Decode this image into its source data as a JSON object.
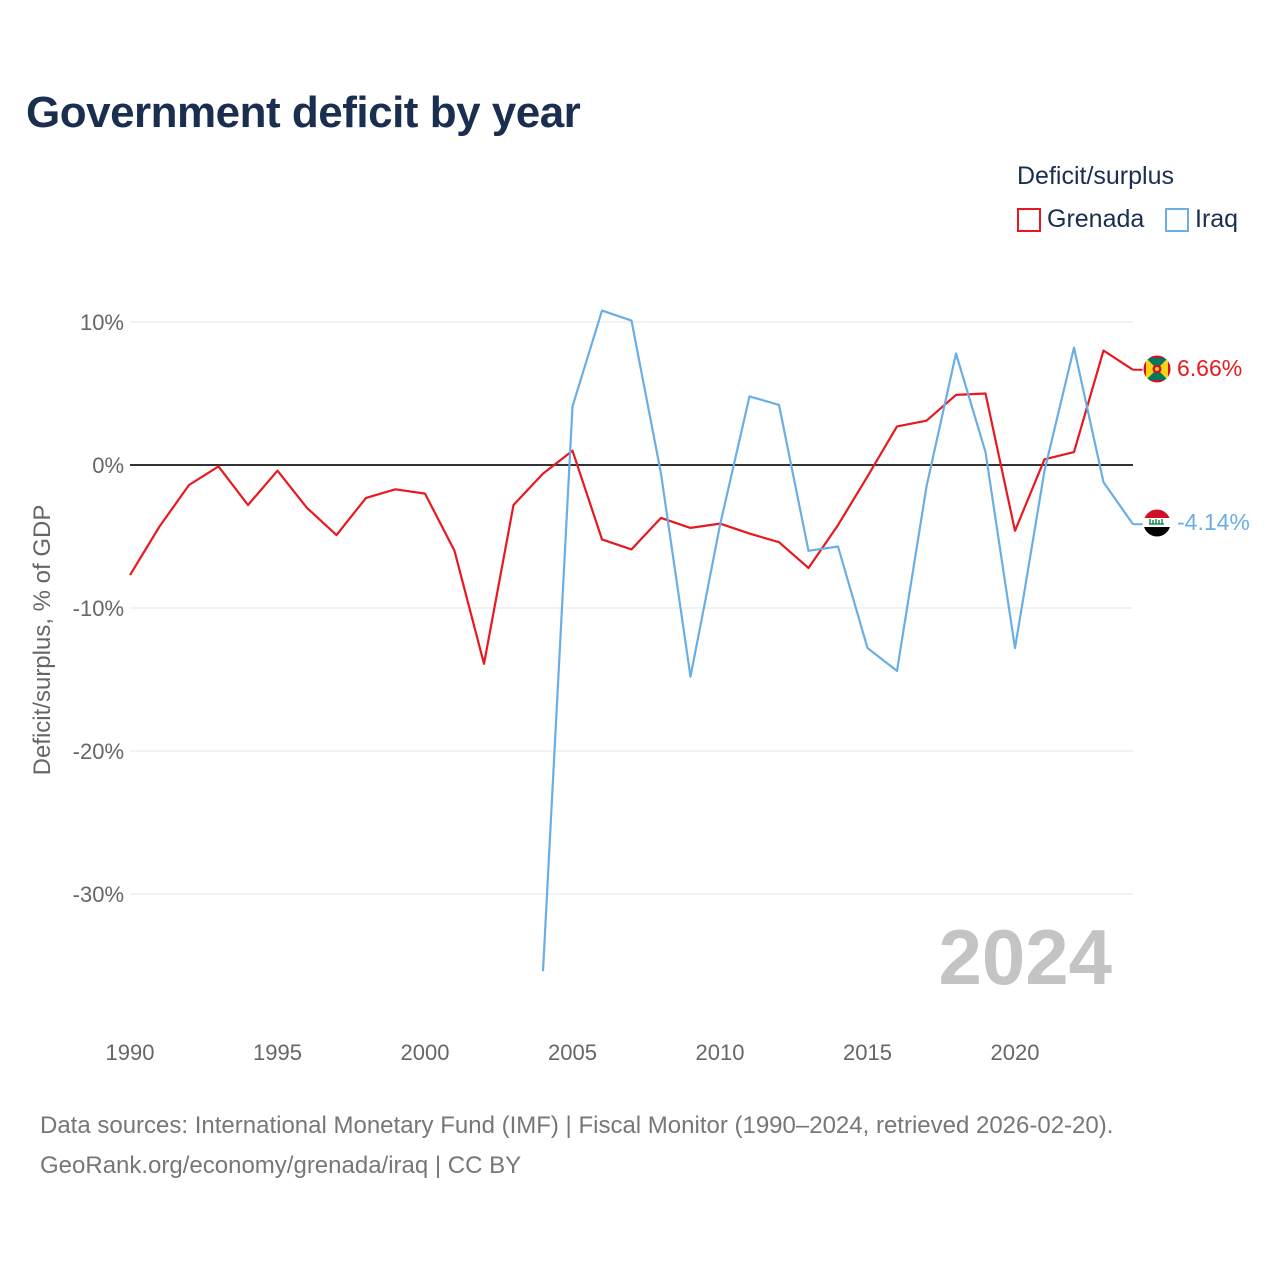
{
  "title": "Government deficit by year",
  "source_line_1": "Data sources: International Monetary Fund (IMF) | Fiscal Monitor (1990–2024, retrieved 2026-02-20).",
  "source_line_2": "GeoRank.org/economy/grenada/iraq | CC BY",
  "colors": {
    "grenada": "#e8191e",
    "iraq": "#6aaee6",
    "title": "#1a2e4f"
  },
  "chart_data": {
    "type": "line",
    "title": "Government deficit by year",
    "xlabel": "",
    "ylabel": "Deficit/surplus, % of GDP",
    "xlim": [
      1990,
      2024
    ],
    "ylim": [
      -37,
      12
    ],
    "x_ticks": [
      1990,
      1995,
      2000,
      2005,
      2010,
      2015,
      2020
    ],
    "y_ticks": [
      {
        "value": 10,
        "label": "10%"
      },
      {
        "value": 0,
        "label": "0%"
      },
      {
        "value": -10,
        "label": "-10%"
      },
      {
        "value": -20,
        "label": "-20%"
      },
      {
        "value": -30,
        "label": "-30%"
      }
    ],
    "legend_title": "Deficit/surplus",
    "legend_position": "top-right",
    "year_watermark": "2024",
    "series": [
      {
        "name": "Grenada",
        "color": "#e8191e",
        "end_label": "6.66%",
        "flag_icon": "grenada-flag-icon",
        "x": [
          1990,
          1991,
          1992,
          1993,
          1994,
          1995,
          1996,
          1997,
          1998,
          1999,
          2000,
          2001,
          2002,
          2003,
          2004,
          2005,
          2006,
          2007,
          2008,
          2009,
          2010,
          2011,
          2012,
          2013,
          2014,
          2015,
          2016,
          2017,
          2018,
          2019,
          2020,
          2021,
          2022,
          2023,
          2024
        ],
        "values": [
          -7.7,
          -4.3,
          -1.4,
          -0.1,
          -2.8,
          -0.4,
          -3.0,
          -4.9,
          -2.3,
          -1.7,
          -2.0,
          -6.0,
          -13.9,
          -2.8,
          -0.6,
          1.0,
          -5.2,
          -5.9,
          -3.7,
          -4.4,
          -4.1,
          -4.8,
          -5.4,
          -7.2,
          -4.2,
          -0.8,
          2.7,
          3.1,
          4.9,
          5.0,
          -4.6,
          0.4,
          0.9,
          8.0,
          6.66
        ]
      },
      {
        "name": "Iraq",
        "color": "#6aaee6",
        "end_label": "-4.14%",
        "flag_icon": "iraq-flag-icon",
        "x": [
          2004,
          2005,
          2006,
          2007,
          2008,
          2009,
          2010,
          2011,
          2012,
          2013,
          2014,
          2015,
          2016,
          2017,
          2018,
          2019,
          2020,
          2021,
          2022,
          2023,
          2024
        ],
        "values": [
          -35.4,
          4.1,
          10.8,
          10.1,
          -0.6,
          -14.8,
          -4.2,
          4.8,
          4.2,
          -6.0,
          -5.7,
          -12.8,
          -14.4,
          -1.5,
          7.8,
          0.9,
          -12.8,
          -0.4,
          8.2,
          -1.2,
          -4.14
        ]
      }
    ]
  }
}
